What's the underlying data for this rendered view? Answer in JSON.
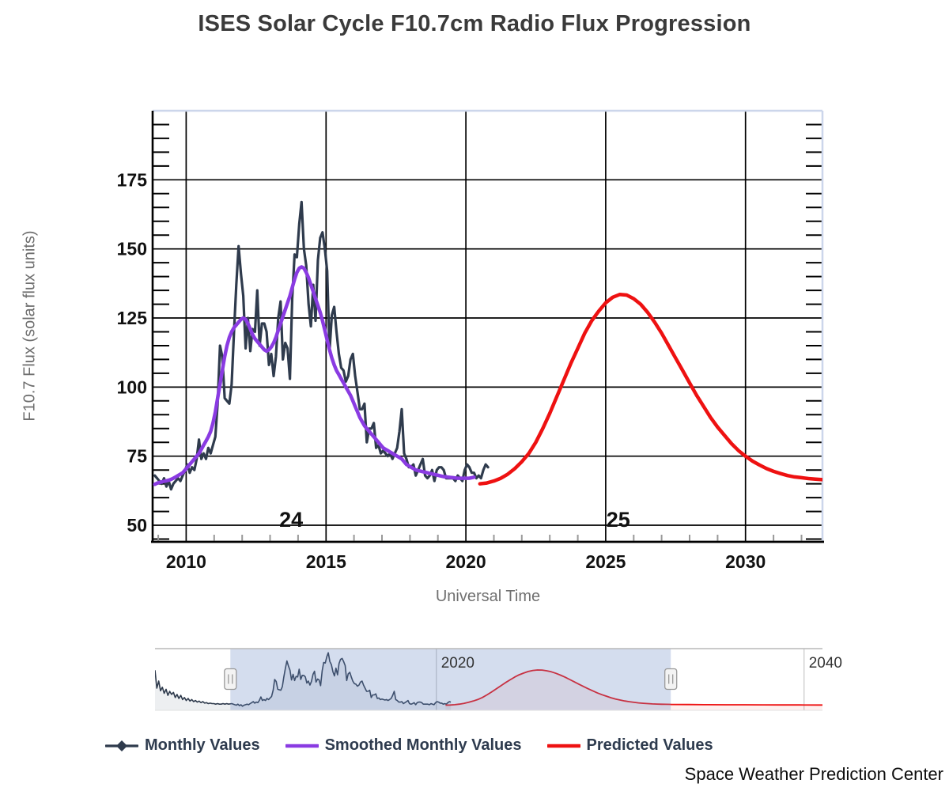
{
  "title": "ISES Solar Cycle F10.7cm Radio Flux Progression",
  "credit": "Space Weather Prediction Center",
  "legend": {
    "items": [
      {
        "label": "Monthly Values",
        "color": "#2f3b4d",
        "marker": "line-diamond"
      },
      {
        "label": "Smoothed Monthly Values",
        "color": "#8a3be2",
        "marker": "line"
      },
      {
        "label": "Predicted Values",
        "color": "#ee1111",
        "marker": "line"
      }
    ]
  },
  "colors": {
    "grid": "#000000",
    "plot_border_light": "#ccd6eb",
    "axis_line": "#000000",
    "minor_x_tick": "#999999",
    "navigator_mask": "rgba(102,133,194,0.28)",
    "navigator_grid": "#cccccc",
    "navigator_border": "#b8b8b8",
    "handle_fill": "#f3f3f3",
    "handle_stroke": "#999999",
    "tick_label": "#111111",
    "cycle_label": "#111111",
    "navigator_label": "#333333"
  },
  "chart_data": {
    "type": "line",
    "title": "ISES Solar Cycle F10.7cm Radio Flux Progression",
    "xlabel": "Universal Time",
    "ylabel": "F10.7 Flux (solar flux units)",
    "xlim": [
      2008.8,
      2032.75
    ],
    "ylim": [
      44,
      200
    ],
    "x_ticks": [
      2010,
      2015,
      2020,
      2025,
      2030
    ],
    "y_ticks": [
      50,
      75,
      100,
      125,
      150,
      175
    ],
    "minor_y_step": 5,
    "grid": true,
    "legend_position": "bottom",
    "cycle_labels": [
      {
        "text": "24",
        "x": 2013.75,
        "y": 52
      },
      {
        "text": "25",
        "x": 2025.45,
        "y": 52
      }
    ],
    "series": [
      {
        "name": "Monthly Values",
        "color": "#2f3b4d",
        "width": 3.2,
        "start": 2008.875,
        "step": 0.0833333,
        "values": [
          68,
          67,
          66,
          65,
          67,
          64,
          66,
          63,
          65,
          66,
          67,
          66,
          68,
          70,
          72,
          69,
          71,
          70,
          74,
          81,
          74,
          76,
          74,
          78,
          76,
          79,
          82,
          94,
          115,
          111,
          96,
          95,
          94,
          101,
          120,
          137,
          151,
          141,
          133,
          114,
          125,
          113,
          121,
          120,
          135,
          115,
          123,
          123,
          120,
          108,
          112,
          104,
          111,
          125,
          131,
          110,
          116,
          114,
          103,
          132,
          148,
          147,
          159,
          167,
          150,
          144,
          130,
          122,
          137,
          124,
          146,
          154,
          156,
          150,
          142,
          113,
          126,
          129,
          120,
          112,
          107,
          106,
          102,
          104,
          110,
          112,
          104,
          98,
          92,
          92,
          94,
          80,
          85,
          85,
          87,
          78,
          79,
          76,
          77,
          76,
          75,
          76,
          74,
          76,
          78,
          84,
          92,
          76,
          74,
          71,
          71,
          72,
          68,
          70,
          72,
          74,
          68,
          67,
          68,
          70,
          66,
          70,
          71,
          71,
          70,
          67,
          67,
          67,
          67,
          66,
          68,
          67,
          66,
          70,
          72,
          71,
          69,
          69,
          67,
          68,
          67,
          70,
          72,
          71
        ]
      },
      {
        "name": "Smoothed Monthly Values",
        "color": "#8a3be2",
        "width": 4.5,
        "start": 2008.875,
        "step": 0.0833333,
        "values": [
          64.8,
          65.2,
          65.5,
          65.7,
          65.9,
          66.1,
          66.3,
          66.6,
          67,
          67.5,
          68,
          68.5,
          69,
          70,
          71,
          72,
          73,
          74,
          75,
          76,
          77.5,
          79,
          80.5,
          82,
          84,
          87,
          91,
          96,
          101,
          106,
          111,
          115,
          118,
          120,
          121.5,
          122.5,
          123.5,
          124.5,
          125,
          124.5,
          123,
          121,
          119,
          117.5,
          116.5,
          115.5,
          114.5,
          113.5,
          113,
          113.5,
          114.5,
          116,
          118,
          120.5,
          123,
          125.5,
          128,
          130.5,
          133,
          136,
          139,
          141.5,
          143,
          143.5,
          143,
          141.5,
          139.5,
          137,
          134.5,
          132,
          129.5,
          127,
          124,
          120.5,
          117,
          113.5,
          110.5,
          108,
          106,
          104.5,
          103,
          101.5,
          100,
          98.5,
          97,
          95,
          93,
          91,
          89,
          87.5,
          86,
          85,
          84,
          83,
          82,
          81,
          80,
          79,
          78,
          77.5,
          77,
          76.5,
          76,
          75.5,
          75,
          74.5,
          74,
          73,
          72,
          71.5,
          71,
          70.5,
          70,
          69.8,
          69.6,
          69.4,
          69.2,
          69,
          68.8,
          68.6,
          68.4,
          68.2,
          68,
          67.8,
          67.6,
          67.5,
          67.4,
          67.3,
          67.2,
          67.1,
          67,
          67,
          67,
          67,
          67,
          67,
          67.2,
          67.4
        ]
      },
      {
        "name": "Predicted Values",
        "color": "#ee1111",
        "width": 4.5,
        "start": 2020.5,
        "step": 0.25,
        "values": [
          65,
          65.3,
          66,
          67,
          68.5,
          70.5,
          73,
          76,
          80,
          85,
          90.5,
          96.5,
          102.5,
          108.5,
          114,
          119.5,
          124,
          127.5,
          130.5,
          132.5,
          133.5,
          133.3,
          132,
          130,
          127,
          123.5,
          119.5,
          115,
          110.5,
          106,
          101.5,
          97,
          93,
          89,
          85.5,
          82.5,
          79.5,
          77,
          75,
          73.2,
          71.8,
          70.5,
          69.5,
          68.7,
          68,
          67.5,
          67.2,
          66.9,
          66.7,
          66.5
        ]
      }
    ],
    "navigator": {
      "xlim": [
        2004.7,
        2041.0
      ],
      "ylim": [
        55,
        175
      ],
      "ticks": [
        2020,
        2040
      ],
      "selected": [
        2008.8,
        2032.75
      ],
      "prefix_series": {
        "color": "#2f3b4d",
        "start": 2004.7,
        "step": 0.1,
        "values": [
          133,
          98,
          112,
          93,
          100,
          88,
          96,
          84,
          92,
          86,
          90,
          80,
          86,
          78,
          84,
          76,
          80,
          74,
          78,
          73,
          76,
          72,
          74,
          71,
          73,
          70,
          72,
          69,
          70,
          68,
          69,
          68,
          68,
          67,
          68,
          67,
          67,
          68,
          67,
          68,
          67
        ]
      },
      "predicted_extension": {
        "color": "#ee1111",
        "start": 2032.75,
        "step": 1.0,
        "values": [
          66.4,
          66.2,
          66,
          65.8,
          65.7,
          65.6,
          65.5,
          65.4,
          65.3,
          65.2
        ]
      }
    }
  }
}
